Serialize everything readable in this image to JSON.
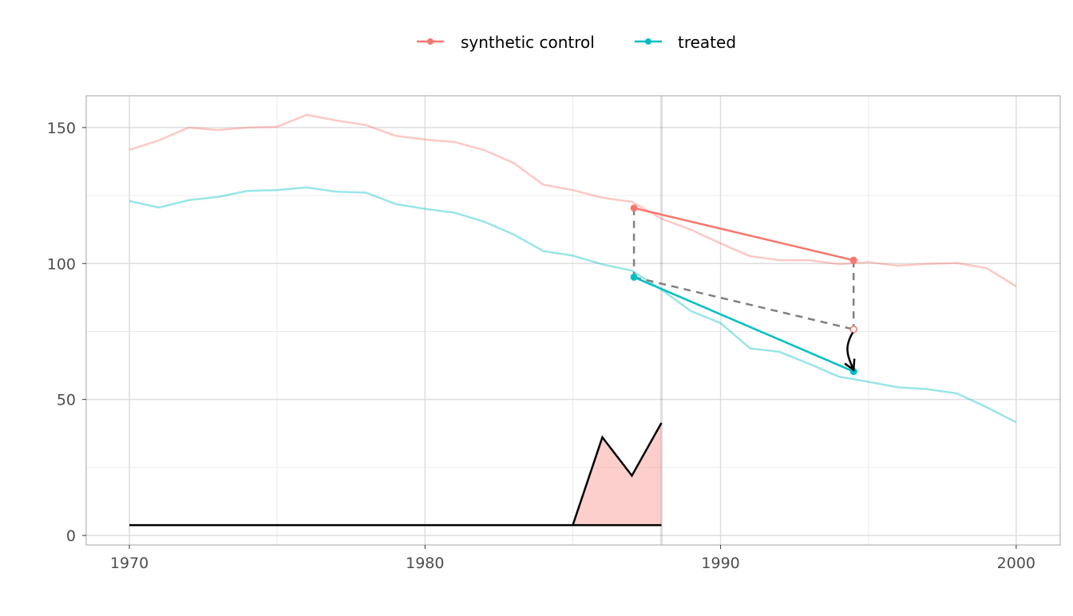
{
  "chart_data": {
    "type": "line",
    "title": "",
    "xlabel": "",
    "ylabel": "",
    "xlim": [
      1968.54,
      2001.49
    ],
    "ylim": [
      -3.5,
      161.7
    ],
    "x_ticks": [
      1970,
      1980,
      1990,
      2000
    ],
    "x_tick_labels": [
      "1970",
      "1980",
      "1990",
      "2000"
    ],
    "x_minor": [
      1975,
      1985,
      1995
    ],
    "y_ticks": [
      0,
      50,
      100,
      150
    ],
    "y_tick_labels": [
      "0",
      "50",
      "100",
      "150"
    ],
    "y_minor": [
      25,
      75,
      125
    ],
    "grid": true,
    "legend": {
      "placement": "top",
      "entries": [
        "synthetic control",
        "treated"
      ]
    },
    "colors": {
      "synthetic": "#F8766D",
      "treated": "#00BFC4",
      "gap": "#000000",
      "gap_fill": "#F8766D",
      "dashed": "#808080"
    },
    "x": [
      1970,
      1971,
      1972,
      1973,
      1974,
      1975,
      1976,
      1977,
      1978,
      1979,
      1980,
      1981,
      1982,
      1983,
      1984,
      1985,
      1986,
      1987,
      1988,
      1989,
      1990,
      1991,
      1992,
      1993,
      1994,
      1995,
      1996,
      1997,
      1998,
      1999,
      2000
    ],
    "series": [
      {
        "name": "synthetic control",
        "values": [
          141.8,
          145.3,
          150.0,
          149.1,
          150.0,
          150.3,
          154.7,
          152.6,
          150.9,
          147.0,
          145.6,
          144.7,
          141.7,
          137.0,
          129.0,
          127.0,
          124.2,
          122.7,
          116.5,
          112.4,
          107.4,
          102.7,
          101.2,
          101.2,
          99.8,
          100.5,
          99.2,
          99.9,
          100.2,
          98.3,
          91.6
        ]
      },
      {
        "name": "treated",
        "values": [
          123.0,
          120.6,
          123.3,
          124.5,
          126.7,
          127.0,
          128.0,
          126.4,
          126.1,
          121.9,
          120.1,
          118.7,
          115.4,
          110.7,
          104.6,
          102.9,
          99.7,
          97.4,
          90.4,
          82.5,
          78.1,
          68.8,
          67.5,
          63.1,
          58.4,
          56.5,
          54.5,
          53.8,
          52.2,
          47.2,
          41.6
        ]
      }
    ],
    "gap": {
      "baseline": 3.8,
      "baseline_range": [
        1970,
        1988
      ],
      "x": [
        1985,
        1986,
        1987,
        1988
      ],
      "values": [
        3.8,
        36.1,
        22.0,
        41.4
      ]
    },
    "reference_vline": 1988,
    "annotation": {
      "x0": 1987.07,
      "x1": 1994.5,
      "synthetic": [
        120.4,
        101.2
      ],
      "treated": [
        95.0,
        60.3
      ],
      "counterfactual": 75.8
    }
  }
}
